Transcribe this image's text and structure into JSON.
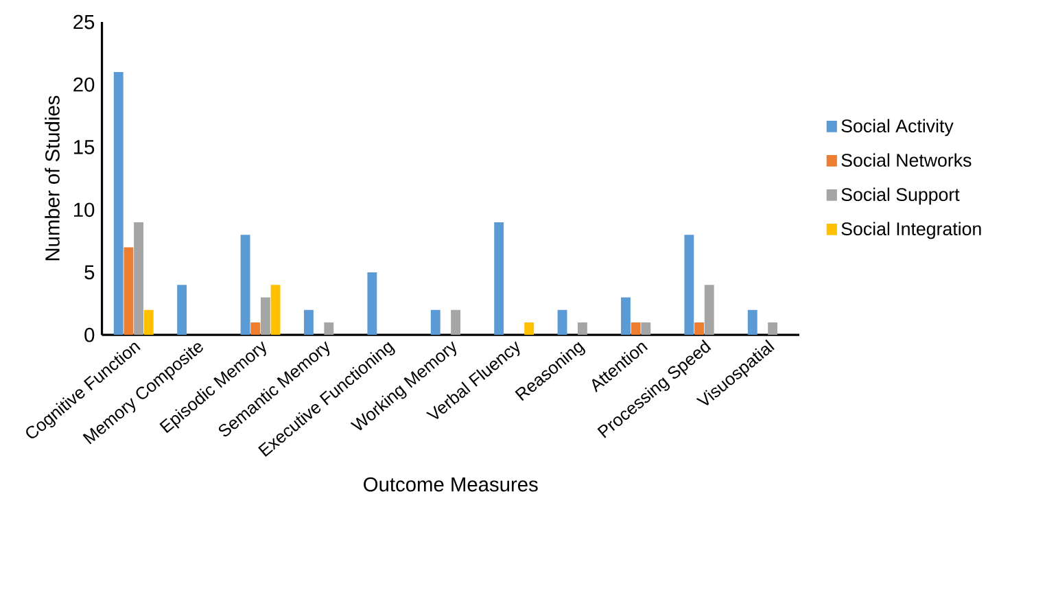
{
  "chart_data": {
    "type": "bar",
    "xlabel": "Outcome Measures",
    "ylabel": "Number of Studies",
    "categories": [
      "Cognitive Function",
      "Memory Composite",
      "Episodic Memory",
      "Semantic Memory",
      "Executive Functioning",
      "Working Memory",
      "Verbal Fluency",
      "Reasoning",
      "Attention",
      "Processing Speed",
      "Visuospatial"
    ],
    "series": [
      {
        "name": "Social Activity",
        "color": "#5b9bd5",
        "values": [
          21,
          4,
          8,
          2,
          5,
          2,
          9,
          2,
          3,
          8,
          2
        ]
      },
      {
        "name": "Social Networks",
        "color": "#ed7d31",
        "values": [
          7,
          0,
          1,
          0,
          0,
          0,
          0,
          0,
          1,
          1,
          0
        ]
      },
      {
        "name": "Social Support",
        "color": "#a5a5a5",
        "values": [
          9,
          0,
          3,
          1,
          0,
          2,
          0,
          1,
          1,
          4,
          1
        ]
      },
      {
        "name": "Social Integration",
        "color": "#ffc000",
        "values": [
          2,
          0,
          4,
          0,
          0,
          0,
          1,
          0,
          0,
          0,
          0
        ]
      }
    ],
    "ylim": [
      0,
      25
    ],
    "yticks": [
      0,
      5,
      10,
      15,
      20,
      25
    ],
    "grid": false,
    "legend": "right"
  }
}
